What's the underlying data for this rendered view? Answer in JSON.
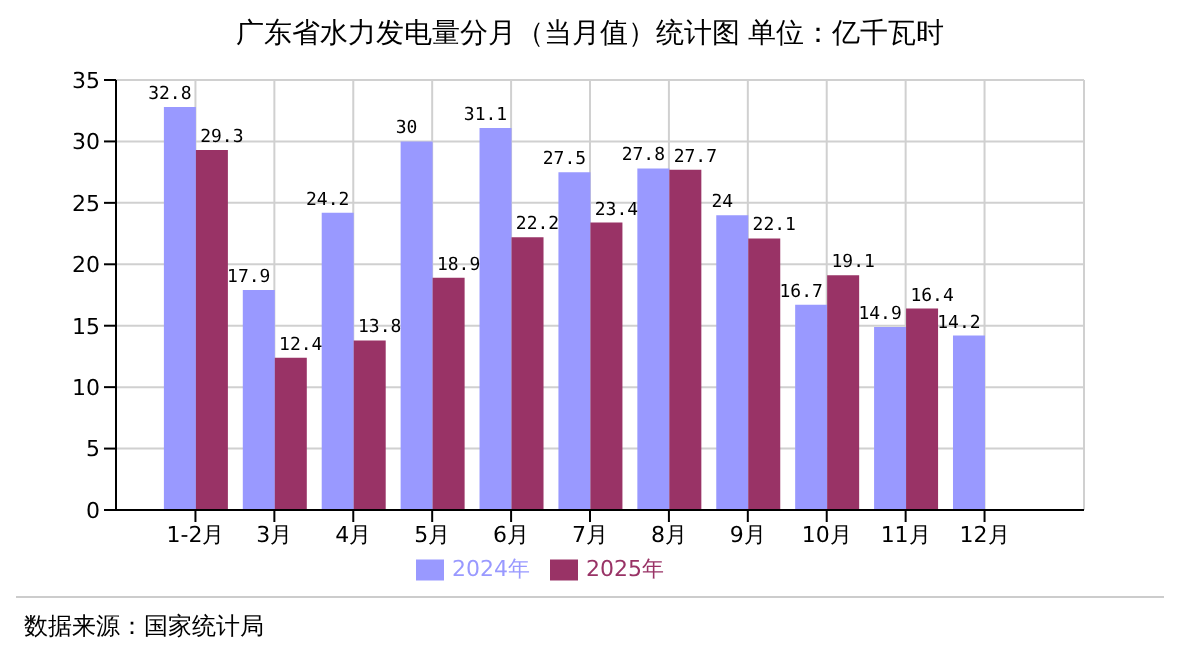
{
  "chart_data": {
    "type": "bar",
    "title": "广东省水力发电量分月（当月值）统计图 单位：亿千瓦时",
    "categories": [
      "1-2月",
      "3月",
      "4月",
      "5月",
      "6月",
      "7月",
      "8月",
      "9月",
      "10月",
      "11月",
      "12月"
    ],
    "series": [
      {
        "name": "2024年",
        "color": "#9999ff",
        "values": [
          32.8,
          17.9,
          24.2,
          30,
          31.1,
          27.5,
          27.8,
          24,
          16.7,
          14.9,
          14.2
        ]
      },
      {
        "name": "2025年",
        "color": "#993366",
        "values": [
          29.3,
          12.4,
          13.8,
          18.9,
          22.2,
          23.4,
          27.7,
          22.1,
          19.1,
          16.4,
          null
        ]
      }
    ],
    "ylim": [
      0,
      35
    ],
    "yticks": [
      0,
      5,
      10,
      15,
      20,
      25,
      30,
      35
    ],
    "grid": true,
    "legend": "bottom",
    "data_labels": true,
    "annotations": [
      "数据来源：国家统计局"
    ]
  }
}
